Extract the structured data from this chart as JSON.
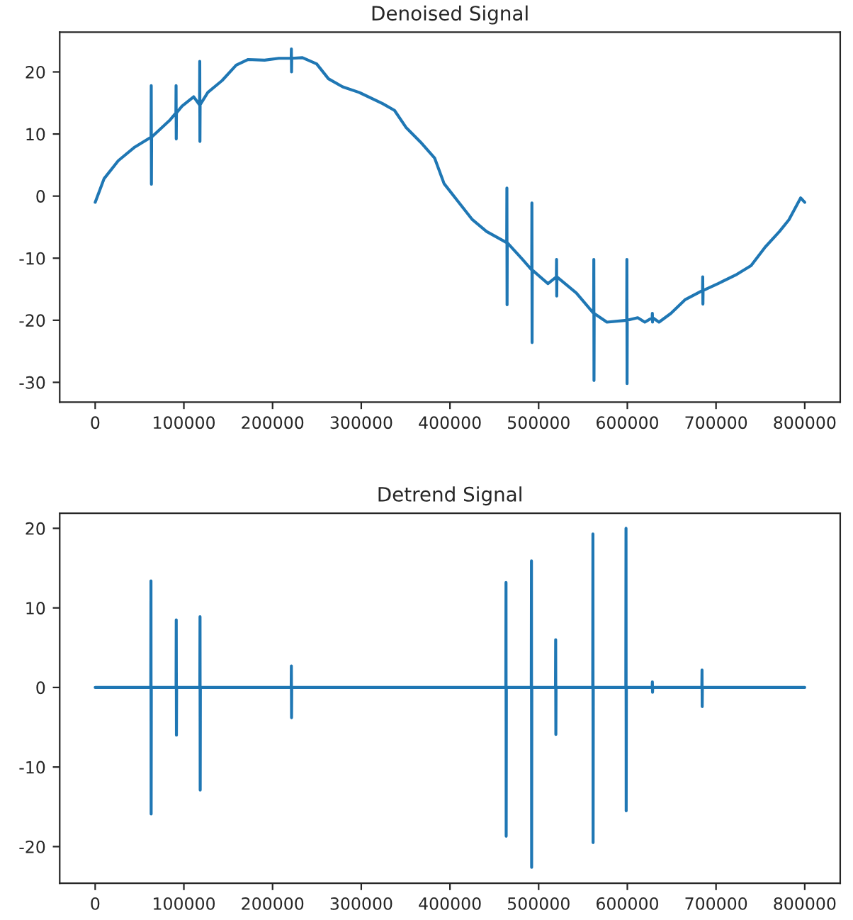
{
  "chart_data": [
    {
      "type": "line",
      "title": "Denoised Signal",
      "xlim": [
        -40000,
        840000
      ],
      "ylim": [
        -33.2,
        26.4
      ],
      "xticks": [
        0,
        100000,
        200000,
        300000,
        400000,
        500000,
        600000,
        700000,
        800000
      ],
      "yticks": [
        -30,
        -20,
        -10,
        0,
        10,
        20
      ],
      "grid": false,
      "marker": "none",
      "line_style": "solid",
      "series": [
        {
          "color": "#1f77b4",
          "x": [
            0,
            10000,
            26000,
            44700,
            63000,
            63200,
            63400,
            63600,
            84600,
            91000,
            91200,
            91400,
            91600,
            98000,
            111000,
            117700,
            117900,
            118100,
            118300,
            127000,
            143000,
            159000,
            172500,
            191000,
            207000,
            221000,
            221200,
            221400,
            221600,
            233700,
            249700,
            263000,
            279000,
            297600,
            324000,
            337500,
            350800,
            366800,
            382800,
            393400,
            409300,
            425300,
            441300,
            464000,
            464200,
            464400,
            464600,
            481200,
            492200,
            492400,
            492600,
            492800,
            510500,
            520000,
            520200,
            520400,
            520600,
            542500,
            562000,
            562200,
            562400,
            562600,
            577000,
            599300,
            599500,
            599700,
            599900,
            611700,
            619700,
            628000,
            628200,
            628400,
            628600,
            635700,
            649000,
            665000,
            684800,
            685000,
            685200,
            685400,
            702300,
            723500,
            739500,
            755500,
            771500,
            782200,
            795400,
            800000
          ],
          "values": [
            -1,
            2.8,
            5.7,
            7.9,
            9.5,
            17.8,
            1.9,
            9.5,
            12.3,
            13.4,
            17.8,
            9.2,
            13.4,
            14.5,
            16.0,
            14.7,
            21.7,
            8.8,
            14.7,
            16.7,
            18.6,
            21.1,
            22.0,
            21.9,
            22.2,
            22.2,
            23.7,
            20.0,
            22.2,
            22.3,
            21.3,
            18.9,
            17.6,
            16.7,
            14.9,
            13.8,
            11.0,
            8.7,
            6.1,
            2.0,
            -0.9,
            -3.8,
            -5.7,
            -7.5,
            1.3,
            -17.5,
            -7.5,
            -10.1,
            -11.9,
            -1.1,
            -23.6,
            -11.9,
            -14.1,
            -13.0,
            -10.2,
            -16.1,
            -13.0,
            -15.6,
            -18.9,
            -10.2,
            -29.7,
            -18.9,
            -20.3,
            -20.0,
            -10.2,
            -30.2,
            -20.0,
            -19.6,
            -20.3,
            -19.6,
            -18.9,
            -20.3,
            -19.6,
            -20.3,
            -18.9,
            -16.7,
            -15.2,
            -13.0,
            -17.4,
            -15.2,
            -14.1,
            -12.6,
            -11.2,
            -8.2,
            -5.7,
            -3.8,
            -0.3,
            -1.0
          ]
        }
      ]
    },
    {
      "type": "line",
      "title": "Detrend Signal",
      "xlim": [
        -40000,
        840000
      ],
      "ylim": [
        -24.6,
        21.9
      ],
      "xticks": [
        0,
        100000,
        200000,
        300000,
        400000,
        500000,
        600000,
        700000,
        800000
      ],
      "yticks": [
        -20,
        -10,
        0,
        10,
        20
      ],
      "grid": false,
      "marker": "none",
      "line_style": "solid",
      "series": [
        {
          "color": "#1f77b4",
          "x": [
            0,
            62700,
            62900,
            63100,
            63300,
            91200,
            91400,
            91600,
            91800,
            118000,
            118200,
            118400,
            118600,
            221000,
            221200,
            221400,
            221600,
            463000,
            463200,
            463400,
            463600,
            491700,
            491900,
            492100,
            492300,
            519000,
            519200,
            519400,
            519600,
            561000,
            561200,
            561400,
            561600,
            598300,
            598500,
            598700,
            598900,
            628000,
            628200,
            628400,
            628600,
            684000,
            684200,
            684400,
            684600,
            800000
          ],
          "values": [
            0,
            0,
            13.4,
            -15.9,
            0,
            0,
            8.5,
            -6.0,
            0,
            0,
            8.9,
            -12.9,
            0,
            0,
            2.7,
            -3.8,
            0,
            0,
            13.2,
            -18.7,
            0,
            0,
            15.9,
            -22.6,
            0,
            0,
            6.0,
            -5.9,
            0,
            0,
            19.3,
            -19.5,
            0,
            0,
            20.0,
            -15.5,
            0,
            0,
            0.7,
            -0.6,
            0,
            0,
            2.2,
            -2.4,
            0,
            0
          ]
        }
      ]
    }
  ]
}
